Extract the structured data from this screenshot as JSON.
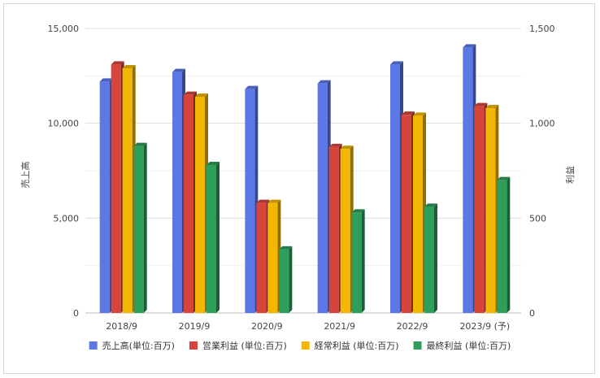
{
  "chart_data": {
    "type": "bar",
    "categories": [
      "2018/9",
      "2019/9",
      "2020/9",
      "2021/9",
      "2022/9",
      "2023/9 (予)"
    ],
    "y_left_label": "売上高",
    "y_right_label": "利益",
    "y_left_lim": [
      0,
      15000
    ],
    "y_right_lim": [
      0,
      1500
    ],
    "y_left_ticks": [
      "0",
      "5,000",
      "10,000",
      "15,000"
    ],
    "y_right_ticks": [
      "0",
      "500",
      "1,000",
      "1,500"
    ],
    "y_left_tick_values": [
      0,
      5000,
      10000,
      15000
    ],
    "y_right_tick_values": [
      0,
      500,
      1000,
      1500
    ],
    "grid": true,
    "legend_position": "bottom",
    "series": [
      {
        "name": "売上高(単位:百万)",
        "axis": "left",
        "color": "#5b78e6",
        "values": [
          12200,
          12700,
          11800,
          12100,
          13100,
          14000
        ]
      },
      {
        "name": "営業利益 (単位:百万)",
        "axis": "right",
        "color": "#d6453b",
        "values": [
          1310,
          1150,
          580,
          875,
          1045,
          1090
        ]
      },
      {
        "name": "経常利益 (単位:百万)",
        "axis": "right",
        "color": "#f2b705",
        "values": [
          1290,
          1140,
          580,
          865,
          1040,
          1080
        ]
      },
      {
        "name": "最終利益 (単位:百万)",
        "axis": "right",
        "color": "#2e9e5b",
        "values": [
          880,
          780,
          335,
          530,
          560,
          700
        ]
      }
    ]
  }
}
